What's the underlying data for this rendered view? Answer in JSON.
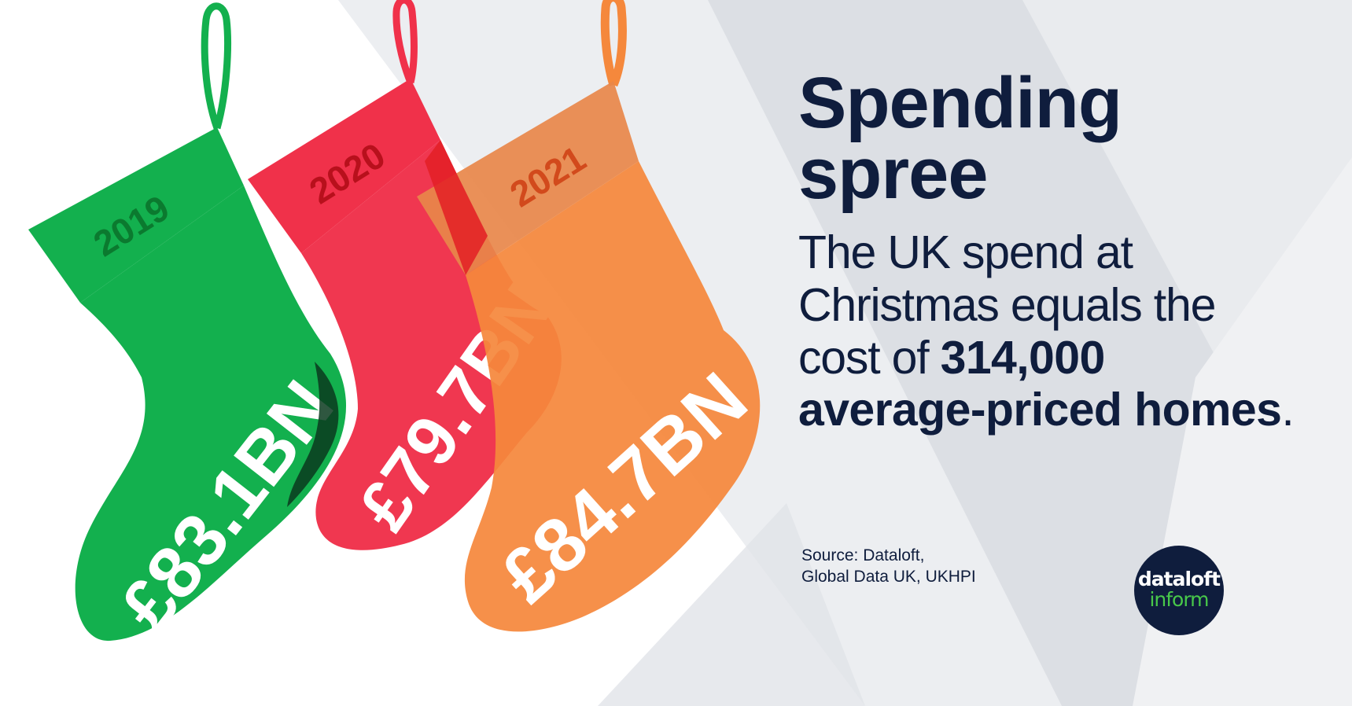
{
  "headline": {
    "line1": "Spending",
    "line2": "spree"
  },
  "body": {
    "part1": "The UK spend at Christmas equals the cost of",
    "highlight1": "314,000",
    "highlight2": "average-priced homes",
    "end": "."
  },
  "source": {
    "line1": "Source: Dataloft,",
    "line2": "Global Data UK, UKHPI"
  },
  "logo": {
    "word1": "dataloft",
    "word2": "inform"
  },
  "stockings": [
    {
      "year": "2019",
      "value": "£83.1BN",
      "color": "#13b04e",
      "cuff": "#13b04e",
      "year_color": "#0b7a2f"
    },
    {
      "year": "2020",
      "value": "£79.7BN",
      "color": "#f0314a",
      "cuff": "#f0314a",
      "year_color": "#b8101c"
    },
    {
      "year": "2021",
      "value": "£84.7BN",
      "color": "#f5883c",
      "cuff": "#e8874a",
      "year_color": "#d24a1c"
    }
  ],
  "colors": {
    "navy": "#0f1d3d",
    "logo_green": "#48c84a",
    "background_grey": "#e5e7eb"
  }
}
